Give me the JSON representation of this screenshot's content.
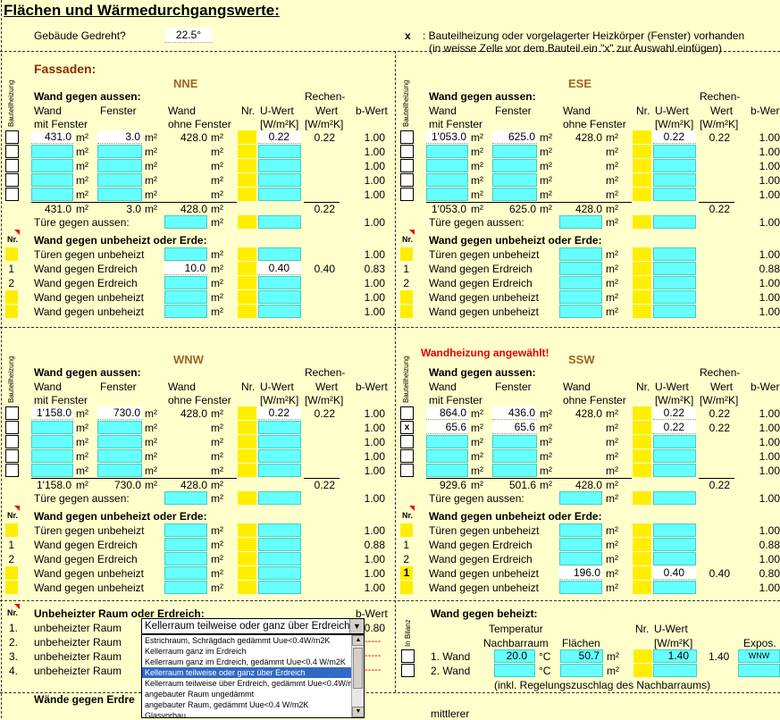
{
  "header": {
    "title": "Flächen und Wärmedurchgangswerte:",
    "gedreht_label": "Gebäude Gedreht?",
    "gedreht_value": "22.5°",
    "note_x": "x",
    "note1": ": Bauteilheizung oder vorgelagerter Heizkörper (Fenster) vorhanden",
    "note2": "(in weisse Zelle vor dem Bauteil ein \"x\" zur Auswahl einfügen)"
  },
  "labels": {
    "fassaden": "Fassaden:",
    "bauteilheizung": "Bauteilheizung",
    "wga": "Wand gegen aussen:",
    "wand": "Wand",
    "fenster": "Fenster",
    "wand2": "Wand",
    "nr": "Nr.",
    "uwert": "U-Wert",
    "rechen": "Rechen-",
    "wert": "Wert",
    "bwert": "b-Wert",
    "mitfenster": "mit Fenster",
    "ohnefenster": "ohne Fenster",
    "unit_w": "[W/m²K]",
    "m2": "m²",
    "tuere": "Türe gegen aussen:",
    "wgu": "Wand gegen unbeheizt oder Erde:",
    "tueren_unb": "Türen gegen unbeheizt",
    "wg_erd": "Wand gegen Erdreich",
    "wg_unb": "Wand gegen unbeheizt"
  },
  "nne": {
    "dir": "NNE",
    "w1": "431.0",
    "f1": "3.0",
    "o1": "428.0",
    "u1": "0.22",
    "r1": "0.22",
    "b": [
      "1.00",
      "1.00",
      "1.00",
      "1.00",
      "1.00"
    ],
    "tw": "431.0",
    "tf": "3.0",
    "to": "428.0",
    "tr": "0.22",
    "tb": "1.00",
    "g_nr": [
      "",
      "1",
      "2",
      "",
      ""
    ],
    "g_b": [
      "1.00",
      "0.83",
      "1.00",
      "1.00",
      "1.00"
    ],
    "g_area2": "10.0",
    "g_u2": "0.40",
    "g_r2": "0.40"
  },
  "ese": {
    "dir": "ESE",
    "w1": "1'053.0",
    "f1": "625.0",
    "o1": "428.0",
    "u1": "0.22",
    "r1": "0.22",
    "b": [
      "1.00",
      "1.00",
      "1.00",
      "1.00",
      "1.00"
    ],
    "tw": "1'053.0",
    "tf": "625.0",
    "to": "428.0",
    "tr": "0.22",
    "tb": "1.00",
    "g_nr": [
      "",
      "1",
      "2",
      "",
      ""
    ],
    "g_b": [
      "1.00",
      "0.88",
      "1.00",
      "1.00",
      "1.00"
    ]
  },
  "wnw": {
    "dir": "WNW",
    "w1": "1'158.0",
    "f1": "730.0",
    "o1": "428.0",
    "u1": "0.22",
    "r1": "0.22",
    "b": [
      "1.00",
      "1.00",
      "1.00",
      "1.00",
      "1.00"
    ],
    "tw": "1'158.0",
    "tf": "730.0",
    "to": "428.0",
    "tr": "0.22",
    "tb": "1.00",
    "g_nr": [
      "",
      "1",
      "2",
      "",
      ""
    ],
    "g_b": [
      "1.00",
      "0.88",
      "1.00",
      "1.00",
      "1.00"
    ]
  },
  "ssw": {
    "dir": "SSW",
    "warn": "Wandheizung angewählt!",
    "w1": "864.0",
    "f1": "436.0",
    "o1": "428.0",
    "u1": "0.22",
    "r1": "0.22",
    "w2": "65.6",
    "f2": "65.6",
    "u2": "0.22",
    "r2": "0.22",
    "x2": "x",
    "b": [
      "1.00",
      "1.00",
      "1.00",
      "1.00",
      "1.00"
    ],
    "tw": "929.6",
    "tf": "501.6",
    "to": "428.0",
    "tr": "0.22",
    "tb": "1.00",
    "g_nr": [
      "",
      "1",
      "2",
      "1",
      ""
    ],
    "g_b": [
      "1.00",
      "0.88",
      "1.00",
      "0.80",
      "1.00"
    ],
    "g_area4": "196.0",
    "g_u4": "0.40",
    "g_r4": "0.40"
  },
  "unbeheizt": {
    "title": "Unbeheizter Raum oder Erdreich:",
    "bwert": "b-Wert",
    "rows": [
      {
        "nr": "1.",
        "label": "unbeheizter Raum",
        "b": "0.80"
      },
      {
        "nr": "2.",
        "label": "unbeheizter Raum"
      },
      {
        "nr": "3.",
        "label": "unbeheizter Raum"
      },
      {
        "nr": "4.",
        "label": "unbeheizter Raum"
      }
    ],
    "dashes": "-----",
    "dropdown_value": "Kellerraum teilweise oder ganz über Erdreich",
    "options": [
      "Estrichraum, Schrägdach gedämmt Uue<0.4W/m2K",
      "Kellerraum ganz im Erdreich",
      "Kellerraum ganz im Erdreich, gedämmt Uue<0.4 W/m2K",
      "Kellerraum teilweise oder ganz über Erdreich",
      "Kellerraum teilweise über Erdreich, gedämmt Uue<0.4W/m",
      "angebauter Raum ungedämmt",
      "angebauter Raum, gedämmt Uue<0.4 W/m2K",
      "Glasvorbau"
    ]
  },
  "beheizt": {
    "title": "Wand gegen beheizt:",
    "in_bilanz": "In Bilanz",
    "temp": "Temperatur",
    "nachbar": "Nachbarraum",
    "flaechen": "Flächen",
    "nr": "Nr.",
    "uwert": "U-Wert",
    "unit": "[W/m²K]",
    "expos": "Expos.",
    "w1": "1. Wand",
    "t1": "20.0",
    "c": "°C",
    "a1": "50.7",
    "m2": "m²",
    "u1": "1.40",
    "r1": "1.40",
    "e1": "WNW",
    "w2": "2. Wand",
    "note": "(inkl. Regelungszuschlag des Nachbarraums)"
  },
  "bottom": {
    "wg_erd": "Wände gegen Erdre",
    "mittlerer": "mittlerer"
  }
}
